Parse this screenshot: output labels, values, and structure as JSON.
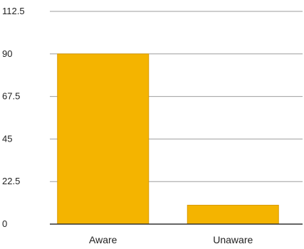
{
  "chart_data": {
    "type": "bar",
    "title": "",
    "xlabel": "",
    "ylabel": "",
    "categories": [
      "Aware",
      "Unaware"
    ],
    "values": [
      90,
      10
    ],
    "ylim": [
      0,
      112.5
    ],
    "yticks": [
      0,
      22.5,
      45,
      67.5,
      90,
      112.5
    ],
    "ytick_labels": [
      "0",
      "22.5",
      "45",
      "67.5",
      "90",
      "112.5"
    ],
    "grid": true,
    "legend": "none",
    "colors": {
      "bar": "#F4B400",
      "bar_stroke": "#D99A00",
      "grid": "#9E9E9E",
      "axis": "#333333"
    }
  }
}
